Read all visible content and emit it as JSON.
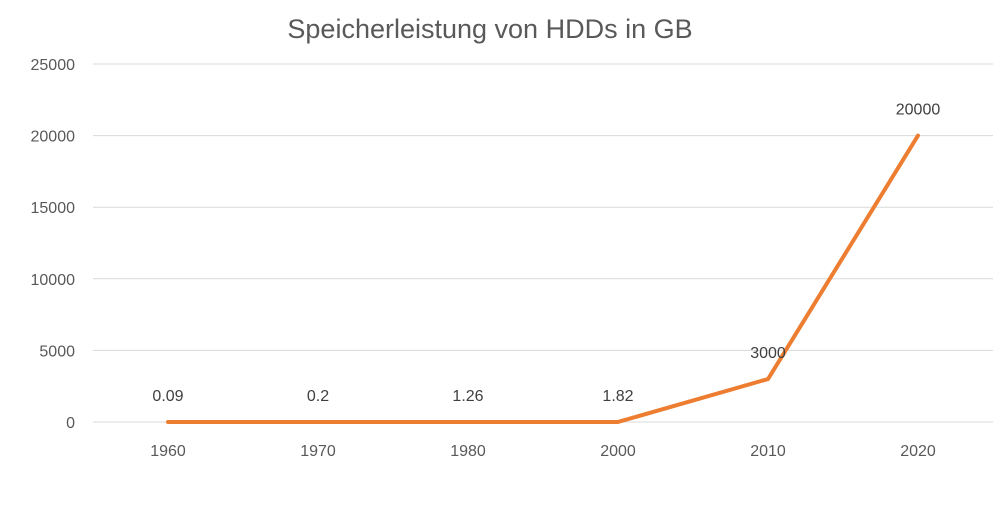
{
  "chart_data": {
    "type": "line",
    "title": "Speicherleistung von HDDs in GB",
    "xlabel": "",
    "ylabel": "",
    "categories": [
      "1960",
      "1970",
      "1980",
      "2000",
      "2010",
      "2020"
    ],
    "series": [
      {
        "values": [
          0.09,
          0.2,
          1.26,
          1.82,
          3000,
          20000
        ],
        "labels": [
          "0.09",
          "0.2",
          "1.26",
          "1.82",
          "3000",
          "20000"
        ],
        "color": "#ED7D31"
      }
    ],
    "yticks": [
      "0",
      "5000",
      "10000",
      "15000",
      "20000",
      "25000"
    ],
    "ylim": [
      0,
      25000
    ],
    "grid": true,
    "legend": "none",
    "colors": {
      "grid": "#D9D9D9",
      "text": "#595959",
      "label": "#404040"
    }
  }
}
